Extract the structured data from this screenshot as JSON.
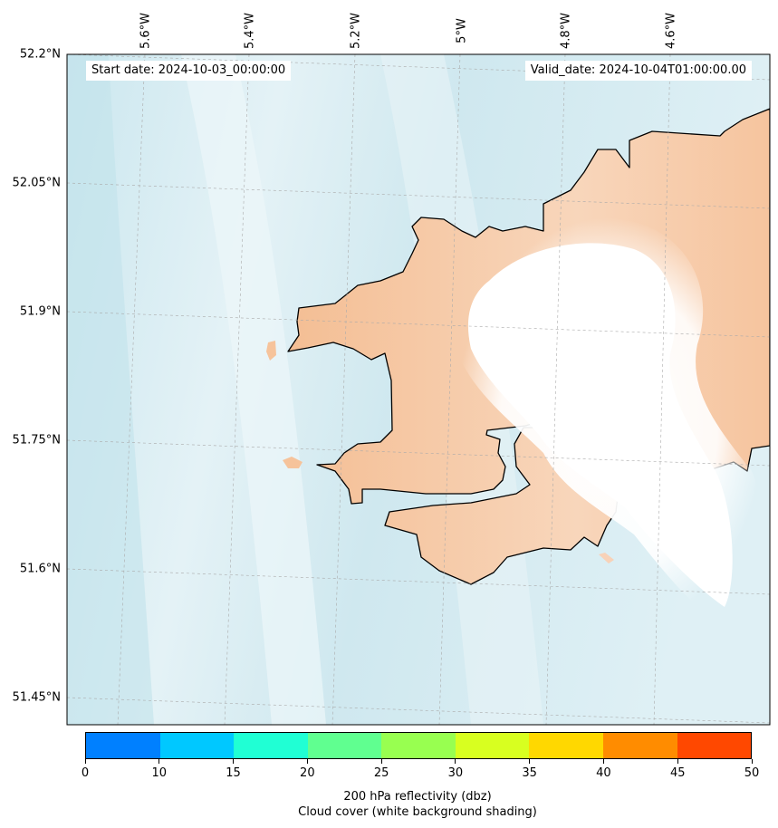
{
  "map": {
    "start_date": "Start date: 2024-10-03_00:00:00",
    "valid_date": "Valid_date: 2024-10-04T01:00:00.00",
    "lon_labels": [
      "5.6°W",
      "5.4°W",
      "5.2°W",
      "5°W",
      "4.8°W",
      "4.6°W"
    ],
    "lat_labels": [
      "52.2°N",
      "52.05°N",
      "51.9°N",
      "51.75°N",
      "51.6°N",
      "51.45°N"
    ],
    "land_color": "#f6c39b",
    "sea_color": "#c6e6ee",
    "cloud_color": "#ffffff"
  },
  "colorbar": {
    "colors": [
      "#0080ff",
      "#00c8ff",
      "#20ffd4",
      "#60ff90",
      "#98ff50",
      "#d8ff20",
      "#ffd800",
      "#ff8c00",
      "#ff4800"
    ],
    "ticks": [
      "0",
      "10",
      "15",
      "20",
      "25",
      "30",
      "35",
      "40",
      "45",
      "50"
    ],
    "title_line1": "200 hPa reflectivity (dbz)",
    "title_line2": "Cloud cover (white background shading)"
  }
}
